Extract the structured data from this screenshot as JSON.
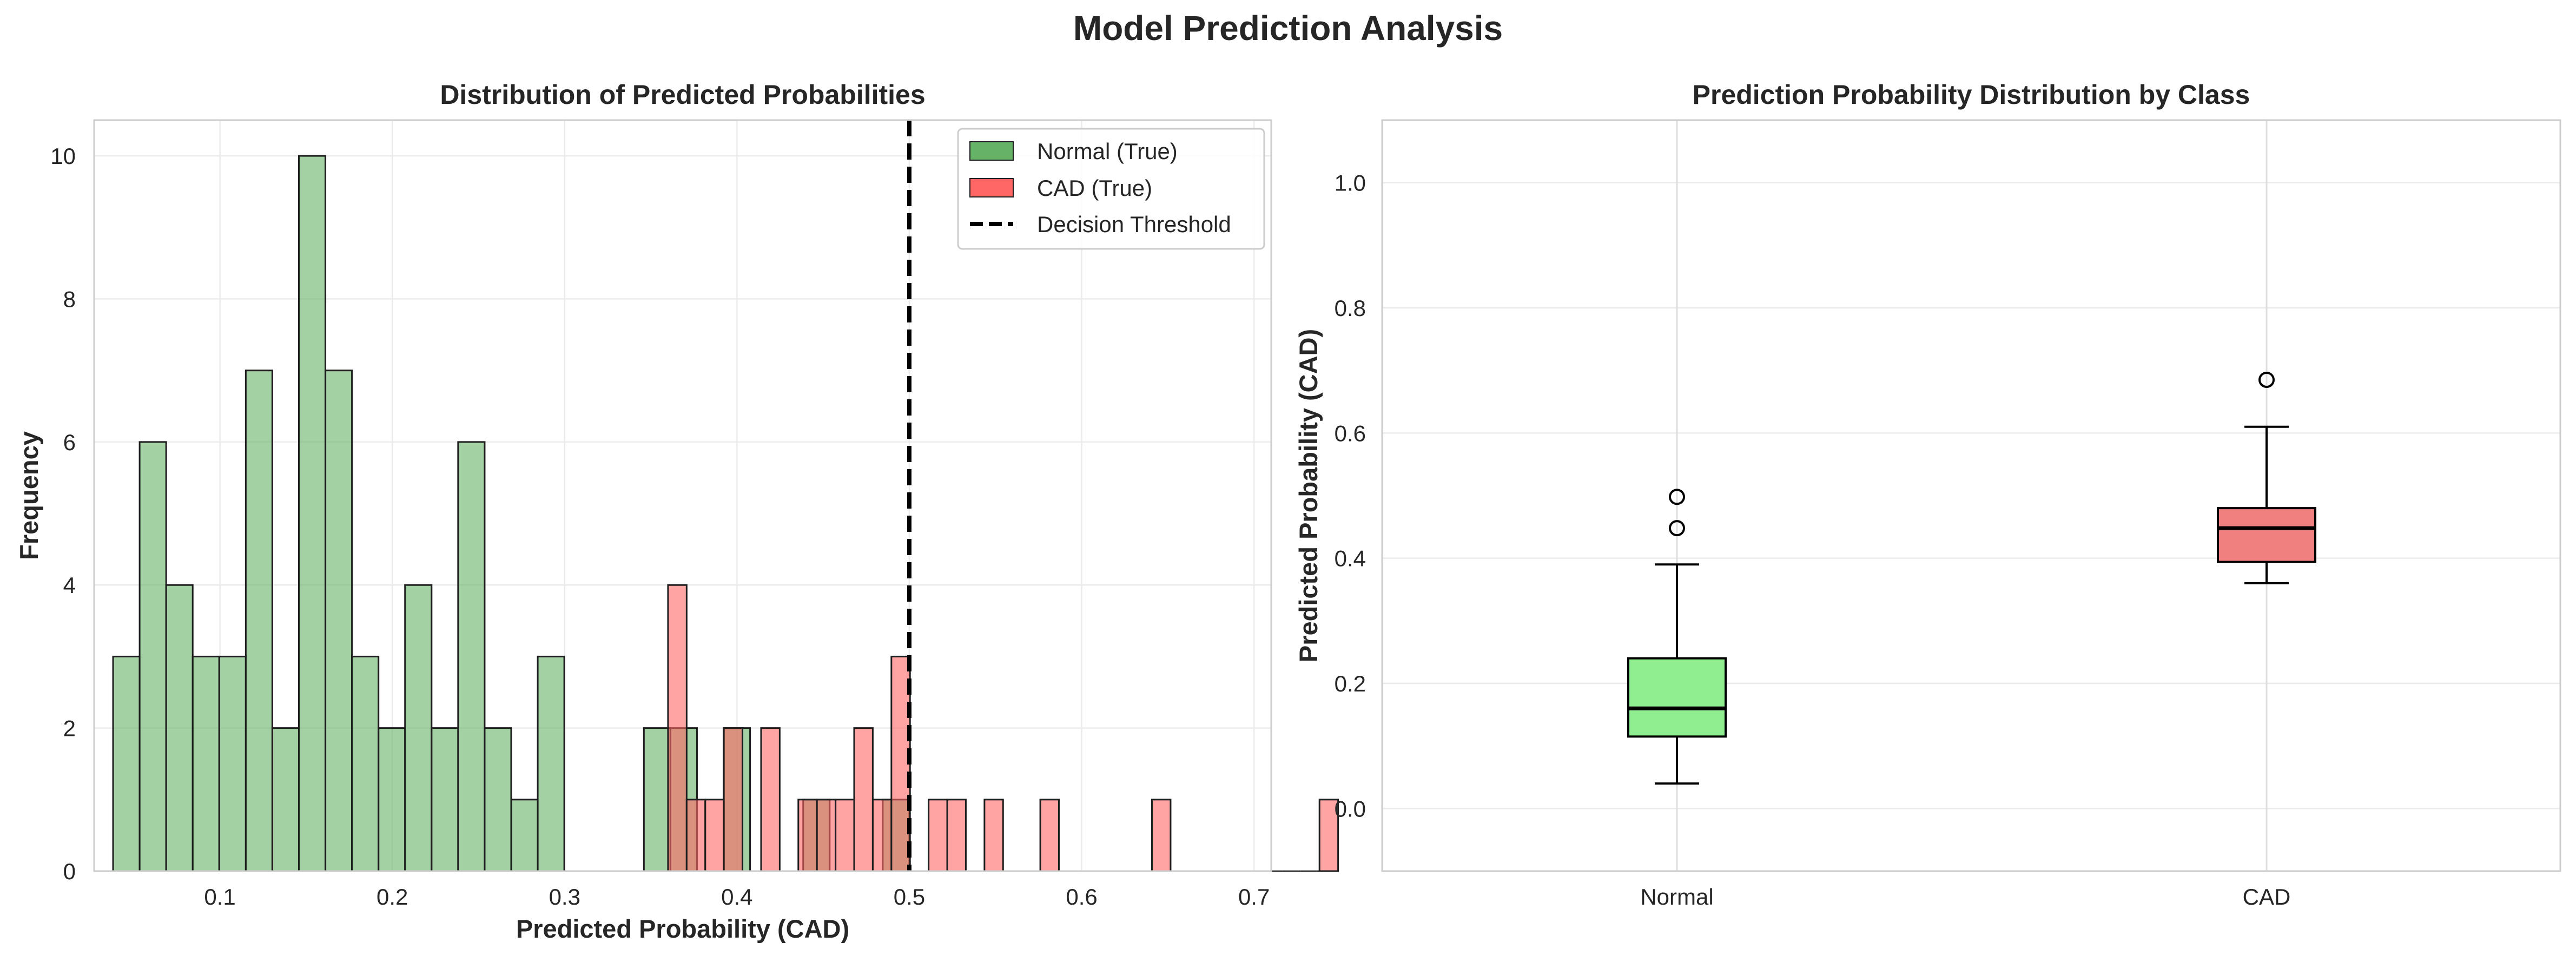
{
  "figure": {
    "suptitle": "Model Prediction Analysis"
  },
  "colors": {
    "normal_hist": "#66b266",
    "cad_hist": "#ff6666",
    "normal_box": "#90ee90",
    "cad_box": "#f08080",
    "bar_edge": "#1e1e1e"
  },
  "chart_data": [
    {
      "type": "histogram",
      "title": "Distribution of Predicted Probabilities",
      "xlabel": "Predicted Probability (CAD)",
      "ylabel": "Frequency",
      "xlim": [
        0.027,
        0.71
      ],
      "ylim": [
        0,
        10.5
      ],
      "xticks": [
        0.1,
        0.2,
        0.3,
        0.4,
        0.5,
        0.6,
        0.7
      ],
      "yticks": [
        0,
        2,
        4,
        6,
        8,
        10
      ],
      "grid": true,
      "legend_position": "upper right",
      "legend": [
        "Normal (True)",
        "CAD (True)",
        "Decision Threshold"
      ],
      "series": [
        {
          "name": "Normal (True)",
          "color": "#66b266",
          "bin_start": 0.038,
          "bin_width": 0.0154,
          "counts": [
            3,
            6,
            4,
            3,
            3,
            7,
            2,
            10,
            7,
            3,
            2,
            4,
            2,
            6,
            2,
            1,
            3,
            0,
            0,
            0,
            2,
            2,
            0,
            2,
            0,
            0,
            1,
            0,
            0,
            1
          ]
        },
        {
          "name": "CAD (True)",
          "color": "#ff6666",
          "bin_start": 0.36,
          "bin_width": 0.0108,
          "counts": [
            4,
            1,
            1,
            2,
            0,
            2,
            0,
            1,
            1,
            1,
            2,
            1,
            3,
            0,
            1,
            1,
            0,
            1,
            0,
            0,
            1,
            0,
            0,
            0,
            0,
            0,
            1,
            0,
            0,
            0,
            0,
            0,
            0,
            0,
            0,
            1
          ]
        }
      ],
      "threshold": {
        "name": "Decision Threshold",
        "x": 0.5
      }
    },
    {
      "type": "box",
      "title": "Prediction Probability Distribution by Class",
      "ylabel": "Predicted Probability (CAD)",
      "ylim": [
        -0.1,
        1.1
      ],
      "yticks": [
        0.0,
        0.2,
        0.4,
        0.6,
        0.8,
        1.0
      ],
      "categories": [
        "Normal",
        "CAD"
      ],
      "grid": true,
      "boxes": [
        {
          "name": "Normal",
          "color": "#90ee90",
          "whisker_low": 0.04,
          "q1": 0.115,
          "median": 0.16,
          "q3": 0.24,
          "whisker_high": 0.39,
          "outliers": [
            0.448,
            0.498
          ]
        },
        {
          "name": "CAD",
          "color": "#f08080",
          "whisker_low": 0.36,
          "q1": 0.394,
          "median": 0.448,
          "q3": 0.48,
          "whisker_high": 0.61,
          "outliers": [
            0.685
          ]
        }
      ]
    }
  ]
}
